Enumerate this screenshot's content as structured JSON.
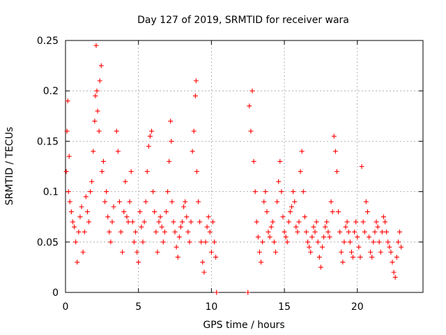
{
  "chart_data": {
    "type": "scatter",
    "title": "Day 127 of 2019, SRMTID for receiver wara",
    "xlabel": "GPS time / hours",
    "ylabel": "SRMTID / TECUs",
    "xlim": [
      0,
      24.5
    ],
    "ylim": [
      0,
      0.25
    ],
    "xticks": [
      0,
      5,
      10,
      15,
      20
    ],
    "yticks": [
      0,
      0.05,
      0.1,
      0.15,
      0.2,
      0.25
    ],
    "xtick_labels": [
      "0",
      "5",
      "10",
      "15",
      "20"
    ],
    "ytick_labels": [
      "0",
      "0.05",
      "0.1",
      "0.15",
      "0.2",
      "0.25"
    ],
    "grid": true,
    "marker": "plus",
    "color": "#ff0000",
    "series": [
      {
        "name": "SRMTID",
        "points": [
          [
            0.05,
            0.12
          ],
          [
            0.1,
            0.16
          ],
          [
            0.15,
            0.19
          ],
          [
            0.2,
            0.1
          ],
          [
            0.25,
            0.135
          ],
          [
            0.3,
            0.09
          ],
          [
            0.4,
            0.08
          ],
          [
            0.5,
            0.07
          ],
          [
            0.6,
            0.065
          ],
          [
            0.7,
            0.05
          ],
          [
            0.8,
            0.03
          ],
          [
            0.9,
            0.06
          ],
          [
            1.0,
            0.075
          ],
          [
            1.1,
            0.085
          ],
          [
            1.2,
            0.04
          ],
          [
            1.3,
            0.06
          ],
          [
            1.4,
            0.095
          ],
          [
            1.5,
            0.08
          ],
          [
            1.6,
            0.07
          ],
          [
            1.7,
            0.1
          ],
          [
            1.8,
            0.11
          ],
          [
            1.9,
            0.14
          ],
          [
            2.0,
            0.17
          ],
          [
            2.05,
            0.195
          ],
          [
            2.1,
            0.245
          ],
          [
            2.15,
            0.2
          ],
          [
            2.2,
            0.18
          ],
          [
            2.3,
            0.16
          ],
          [
            2.35,
            0.21
          ],
          [
            2.45,
            0.225
          ],
          [
            2.5,
            0.12
          ],
          [
            2.6,
            0.13
          ],
          [
            2.7,
            0.09
          ],
          [
            2.8,
            0.1
          ],
          [
            2.9,
            0.075
          ],
          [
            3.0,
            0.06
          ],
          [
            3.1,
            0.05
          ],
          [
            3.2,
            0.07
          ],
          [
            3.3,
            0.085
          ],
          [
            3.5,
            0.16
          ],
          [
            3.6,
            0.14
          ],
          [
            3.7,
            0.09
          ],
          [
            3.8,
            0.06
          ],
          [
            3.9,
            0.04
          ],
          [
            4.0,
            0.08
          ],
          [
            4.1,
            0.11
          ],
          [
            4.2,
            0.075
          ],
          [
            4.3,
            0.07
          ],
          [
            4.4,
            0.09
          ],
          [
            4.5,
            0.12
          ],
          [
            4.6,
            0.07
          ],
          [
            4.7,
            0.05
          ],
          [
            4.8,
            0.06
          ],
          [
            4.9,
            0.04
          ],
          [
            5.0,
            0.03
          ],
          [
            5.1,
            0.08
          ],
          [
            5.2,
            0.065
          ],
          [
            5.3,
            0.05
          ],
          [
            5.4,
            0.07
          ],
          [
            5.5,
            0.09
          ],
          [
            5.6,
            0.12
          ],
          [
            5.7,
            0.145
          ],
          [
            5.8,
            0.155
          ],
          [
            5.9,
            0.16
          ],
          [
            6.0,
            0.1
          ],
          [
            6.1,
            0.08
          ],
          [
            6.2,
            0.06
          ],
          [
            6.3,
            0.04
          ],
          [
            6.4,
            0.07
          ],
          [
            6.5,
            0.075
          ],
          [
            6.6,
            0.065
          ],
          [
            6.7,
            0.05
          ],
          [
            6.8,
            0.06
          ],
          [
            6.9,
            0.08
          ],
          [
            7.0,
            0.1
          ],
          [
            7.1,
            0.13
          ],
          [
            7.2,
            0.17
          ],
          [
            7.25,
            0.15
          ],
          [
            7.3,
            0.09
          ],
          [
            7.4,
            0.07
          ],
          [
            7.5,
            0.06
          ],
          [
            7.6,
            0.045
          ],
          [
            7.7,
            0.035
          ],
          [
            7.8,
            0.055
          ],
          [
            7.9,
            0.065
          ],
          [
            8.0,
            0.07
          ],
          [
            8.1,
            0.085
          ],
          [
            8.2,
            0.09
          ],
          [
            8.3,
            0.075
          ],
          [
            8.4,
            0.06
          ],
          [
            8.5,
            0.05
          ],
          [
            8.6,
            0.07
          ],
          [
            8.7,
            0.14
          ],
          [
            8.8,
            0.16
          ],
          [
            8.9,
            0.195
          ],
          [
            8.95,
            0.21
          ],
          [
            9.0,
            0.12
          ],
          [
            9.1,
            0.09
          ],
          [
            9.2,
            0.07
          ],
          [
            9.3,
            0.05
          ],
          [
            9.4,
            0.03
          ],
          [
            9.5,
            0.02
          ],
          [
            9.6,
            0.05
          ],
          [
            9.7,
            0.065
          ],
          [
            9.8,
            0.075
          ],
          [
            9.9,
            0.06
          ],
          [
            10.0,
            0.04
          ],
          [
            10.1,
            0.07
          ],
          [
            10.2,
            0.05
          ],
          [
            10.3,
            0.035
          ],
          [
            10.35,
            0.0
          ],
          [
            12.5,
            0.0
          ],
          [
            12.6,
            0.185
          ],
          [
            12.7,
            0.16
          ],
          [
            12.8,
            0.2
          ],
          [
            12.9,
            0.13
          ],
          [
            13.0,
            0.1
          ],
          [
            13.1,
            0.07
          ],
          [
            13.2,
            0.055
          ],
          [
            13.3,
            0.04
          ],
          [
            13.4,
            0.03
          ],
          [
            13.5,
            0.05
          ],
          [
            13.6,
            0.09
          ],
          [
            13.7,
            0.1
          ],
          [
            13.8,
            0.08
          ],
          [
            13.9,
            0.06
          ],
          [
            14.0,
            0.055
          ],
          [
            14.1,
            0.065
          ],
          [
            14.2,
            0.07
          ],
          [
            14.3,
            0.05
          ],
          [
            14.4,
            0.04
          ],
          [
            14.5,
            0.09
          ],
          [
            14.6,
            0.11
          ],
          [
            14.7,
            0.13
          ],
          [
            14.8,
            0.1
          ],
          [
            14.9,
            0.075
          ],
          [
            15.0,
            0.06
          ],
          [
            15.1,
            0.055
          ],
          [
            15.2,
            0.05
          ],
          [
            15.3,
            0.07
          ],
          [
            15.4,
            0.08
          ],
          [
            15.5,
            0.085
          ],
          [
            15.6,
            0.1
          ],
          [
            15.7,
            0.09
          ],
          [
            15.8,
            0.065
          ],
          [
            15.9,
            0.06
          ],
          [
            16.0,
            0.07
          ],
          [
            16.1,
            0.12
          ],
          [
            16.2,
            0.14
          ],
          [
            16.3,
            0.1
          ],
          [
            16.4,
            0.075
          ],
          [
            16.5,
            0.06
          ],
          [
            16.6,
            0.05
          ],
          [
            16.7,
            0.045
          ],
          [
            16.8,
            0.04
          ],
          [
            16.9,
            0.055
          ],
          [
            17.0,
            0.065
          ],
          [
            17.1,
            0.06
          ],
          [
            17.2,
            0.07
          ],
          [
            17.3,
            0.05
          ],
          [
            17.4,
            0.035
          ],
          [
            17.5,
            0.025
          ],
          [
            17.6,
            0.045
          ],
          [
            17.7,
            0.055
          ],
          [
            17.8,
            0.065
          ],
          [
            17.9,
            0.07
          ],
          [
            18.0,
            0.06
          ],
          [
            18.1,
            0.055
          ],
          [
            18.2,
            0.09
          ],
          [
            18.3,
            0.08
          ],
          [
            18.4,
            0.155
          ],
          [
            18.5,
            0.14
          ],
          [
            18.6,
            0.12
          ],
          [
            18.7,
            0.08
          ],
          [
            18.8,
            0.06
          ],
          [
            18.9,
            0.04
          ],
          [
            19.0,
            0.03
          ],
          [
            19.1,
            0.05
          ],
          [
            19.2,
            0.065
          ],
          [
            19.3,
            0.07
          ],
          [
            19.4,
            0.06
          ],
          [
            19.5,
            0.05
          ],
          [
            19.6,
            0.04
          ],
          [
            19.7,
            0.035
          ],
          [
            19.8,
            0.06
          ],
          [
            19.9,
            0.07
          ],
          [
            20.0,
            0.055
          ],
          [
            20.1,
            0.045
          ],
          [
            20.2,
            0.035
          ],
          [
            20.3,
            0.125
          ],
          [
            20.4,
            0.07
          ],
          [
            20.5,
            0.06
          ],
          [
            20.6,
            0.09
          ],
          [
            20.7,
            0.08
          ],
          [
            20.8,
            0.055
          ],
          [
            20.9,
            0.04
          ],
          [
            21.0,
            0.035
          ],
          [
            21.1,
            0.05
          ],
          [
            21.2,
            0.06
          ],
          [
            21.3,
            0.07
          ],
          [
            21.4,
            0.065
          ],
          [
            21.5,
            0.05
          ],
          [
            21.6,
            0.04
          ],
          [
            21.7,
            0.06
          ],
          [
            21.8,
            0.075
          ],
          [
            21.9,
            0.07
          ],
          [
            22.0,
            0.06
          ],
          [
            22.1,
            0.05
          ],
          [
            22.2,
            0.045
          ],
          [
            22.3,
            0.04
          ],
          [
            22.4,
            0.03
          ],
          [
            22.5,
            0.02
          ],
          [
            22.6,
            0.015
          ],
          [
            22.7,
            0.035
          ],
          [
            22.8,
            0.05
          ],
          [
            22.9,
            0.06
          ],
          [
            23.0,
            0.045
          ]
        ]
      }
    ]
  }
}
